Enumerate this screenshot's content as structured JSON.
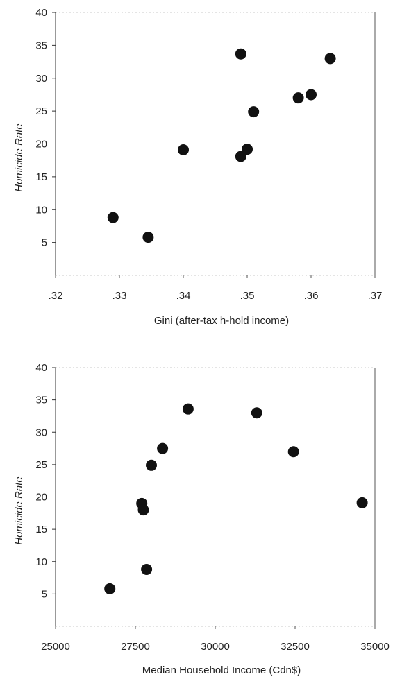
{
  "chart_data": [
    {
      "type": "scatter",
      "title": "",
      "xlabel": "Gini (after-tax h-hold income)",
      "ylabel": "Homicide Rate",
      "xlim": [
        0.32,
        0.37
      ],
      "ylim": [
        0,
        40
      ],
      "x_ticks": [
        ".32",
        ".33",
        ".34",
        ".35",
        ".36",
        ".37"
      ],
      "y_ticks": [
        "5",
        "10",
        "15",
        "20",
        "25",
        "30",
        "35",
        "40"
      ],
      "marker_color": "#111111",
      "grid": false,
      "series": [
        {
          "points": [
            {
              "x": 0.329,
              "y": 8.8
            },
            {
              "x": 0.3345,
              "y": 5.8
            },
            {
              "x": 0.34,
              "y": 19.1
            },
            {
              "x": 0.349,
              "y": 18.1
            },
            {
              "x": 0.349,
              "y": 33.7
            },
            {
              "x": 0.35,
              "y": 19.2
            },
            {
              "x": 0.351,
              "y": 24.9
            },
            {
              "x": 0.358,
              "y": 27.0
            },
            {
              "x": 0.36,
              "y": 27.5
            },
            {
              "x": 0.363,
              "y": 33.0
            }
          ]
        }
      ]
    },
    {
      "type": "scatter",
      "title": "",
      "xlabel": "Median Household Income (Cdn$)",
      "ylabel": "Homicide Rate",
      "xlim": [
        25000,
        35000
      ],
      "ylim": [
        0,
        40
      ],
      "x_ticks": [
        "25000",
        "27500",
        "30000",
        "32500",
        "35000"
      ],
      "y_ticks": [
        "5",
        "10",
        "15",
        "20",
        "25",
        "30",
        "35",
        "40"
      ],
      "marker_color": "#111111",
      "grid": false,
      "series": [
        {
          "points": [
            {
              "x": 26700,
              "y": 5.8
            },
            {
              "x": 27700,
              "y": 19.0
            },
            {
              "x": 27750,
              "y": 18.0
            },
            {
              "x": 27850,
              "y": 8.8
            },
            {
              "x": 28000,
              "y": 24.9
            },
            {
              "x": 28350,
              "y": 27.5
            },
            {
              "x": 29150,
              "y": 33.6
            },
            {
              "x": 31300,
              "y": 33.0
            },
            {
              "x": 32450,
              "y": 27.0
            },
            {
              "x": 34600,
              "y": 19.1
            }
          ]
        }
      ]
    }
  ]
}
